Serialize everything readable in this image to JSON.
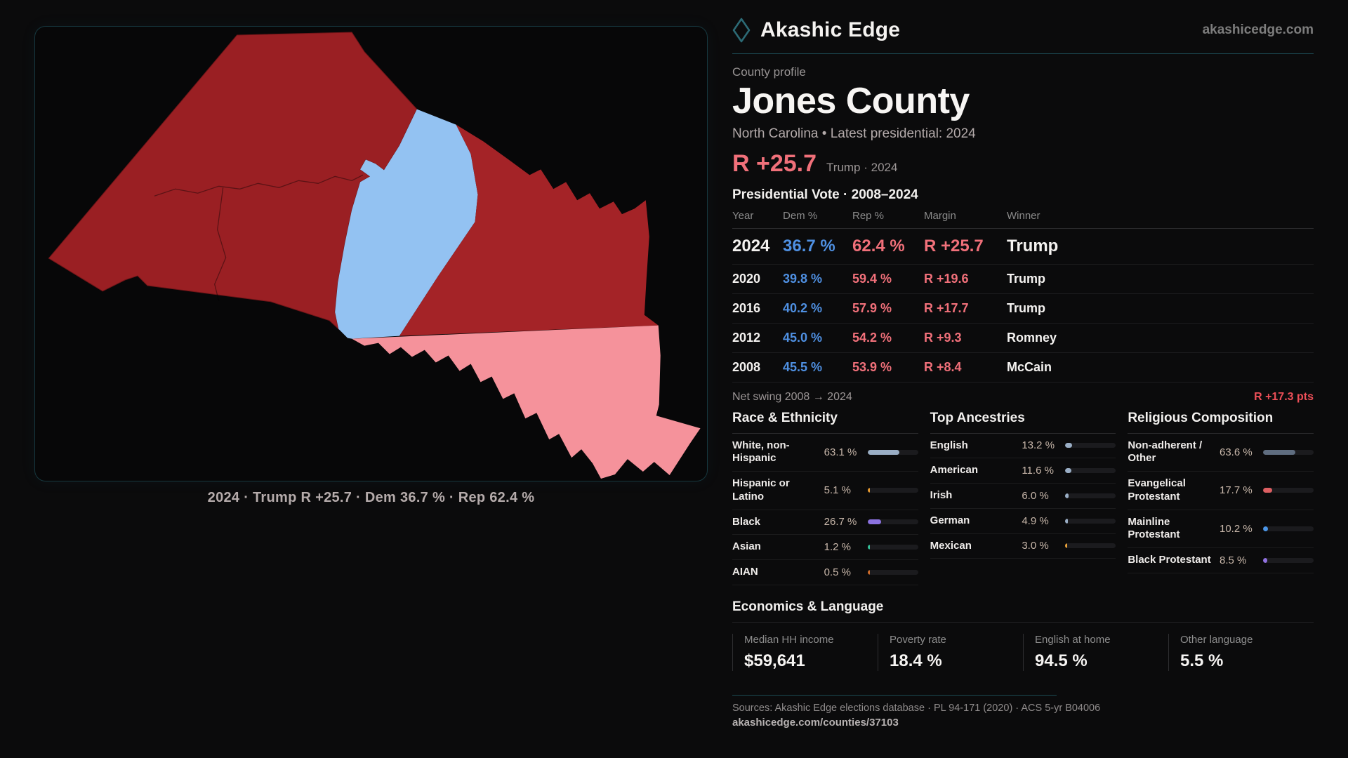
{
  "brand": {
    "name": "Akashic Edge",
    "domain": "akashicedge.com"
  },
  "profile": {
    "kicker": "County profile",
    "title": "Jones County",
    "subtitle": "North Carolina • Latest presidential: 2024",
    "headline_margin": "R +25.7",
    "headline_note": "Trump · 2024"
  },
  "map": {
    "caption": "2024 · Trump R +25.7 · Dem 36.7 % · Rep 62.4 %",
    "colors": {
      "west": "#9a1f23",
      "east": "#a42327",
      "blue": "#93c2f2",
      "pink": "#f5929b"
    }
  },
  "table": {
    "title": "Presidential Vote · 2008–2024",
    "columns": [
      "Year",
      "Dem %",
      "Rep %",
      "Margin",
      "Winner"
    ],
    "rows": [
      {
        "year": "2024",
        "dem": "36.7 %",
        "rep": "62.4 %",
        "margin": "R +25.7",
        "winner": "Trump"
      },
      {
        "year": "2020",
        "dem": "39.8 %",
        "rep": "59.4 %",
        "margin": "R +19.6",
        "winner": "Trump"
      },
      {
        "year": "2016",
        "dem": "40.2 %",
        "rep": "57.9 %",
        "margin": "R +17.7",
        "winner": "Trump"
      },
      {
        "year": "2012",
        "dem": "45.0 %",
        "rep": "54.2 %",
        "margin": "R +9.3",
        "winner": "Romney"
      },
      {
        "year": "2008",
        "dem": "45.5 %",
        "rep": "53.9 %",
        "margin": "R +8.4",
        "winner": "McCain"
      }
    ]
  },
  "net_swing": {
    "label": "Net swing 2008 → 2024",
    "value": "R +17.3 pts"
  },
  "race": {
    "title": "Race & Ethnicity",
    "rows": [
      {
        "label": "White, non-Hispanic",
        "value": "63.1 %",
        "pct": 63.1,
        "color": "#9aaec5"
      },
      {
        "label": "Hispanic or Latino",
        "value": "5.1 %",
        "pct": 5.1,
        "color": "#e89b30"
      },
      {
        "label": "Black",
        "value": "26.7 %",
        "pct": 26.7,
        "color": "#8b72e0"
      },
      {
        "label": "Asian",
        "value": "1.2 %",
        "pct": 1.2,
        "color": "#35c29a"
      },
      {
        "label": "AIAN",
        "value": "0.5 %",
        "pct": 0.5,
        "color": "#cf6c2a"
      }
    ]
  },
  "ancestries": {
    "title": "Top Ancestries",
    "rows": [
      {
        "label": "English",
        "value": "13.2 %",
        "pct": 13.2,
        "color": "#9aaec5"
      },
      {
        "label": "American",
        "value": "11.6 %",
        "pct": 11.6,
        "color": "#9aaec5"
      },
      {
        "label": "Irish",
        "value": "6.0 %",
        "pct": 6.0,
        "color": "#9aaec5"
      },
      {
        "label": "German",
        "value": "4.9 %",
        "pct": 4.9,
        "color": "#9aaec5"
      },
      {
        "label": "Mexican",
        "value": "3.0 %",
        "pct": 3.0,
        "color": "#e8a23a"
      }
    ]
  },
  "religion": {
    "title": "Religious Composition",
    "rows": [
      {
        "label": "Non-adherent / Other",
        "value": "63.6 %",
        "pct": 63.6,
        "color": "#5f6d80"
      },
      {
        "label": "Evangelical Protestant",
        "value": "17.7 %",
        "pct": 17.7,
        "color": "#dd5f62"
      },
      {
        "label": "Mainline Protestant",
        "value": "10.2 %",
        "pct": 10.2,
        "color": "#4b96e8"
      },
      {
        "label": "Black Protestant",
        "value": "8.5 %",
        "pct": 8.5,
        "color": "#9071e0"
      }
    ]
  },
  "econ": {
    "title": "Economics & Language",
    "stats": [
      {
        "label": "Median HH income",
        "value": "$59,641"
      },
      {
        "label": "Poverty rate",
        "value": "18.4 %"
      },
      {
        "label": "English at home",
        "value": "94.5 %"
      },
      {
        "label": "Other language",
        "value": "5.5 %"
      }
    ]
  },
  "footer": {
    "sources": "Sources: Akashic Edge elections database · PL 94-171 (2020) · ACS 5-yr B04006",
    "url": "akashicedge.com/counties/37103"
  }
}
